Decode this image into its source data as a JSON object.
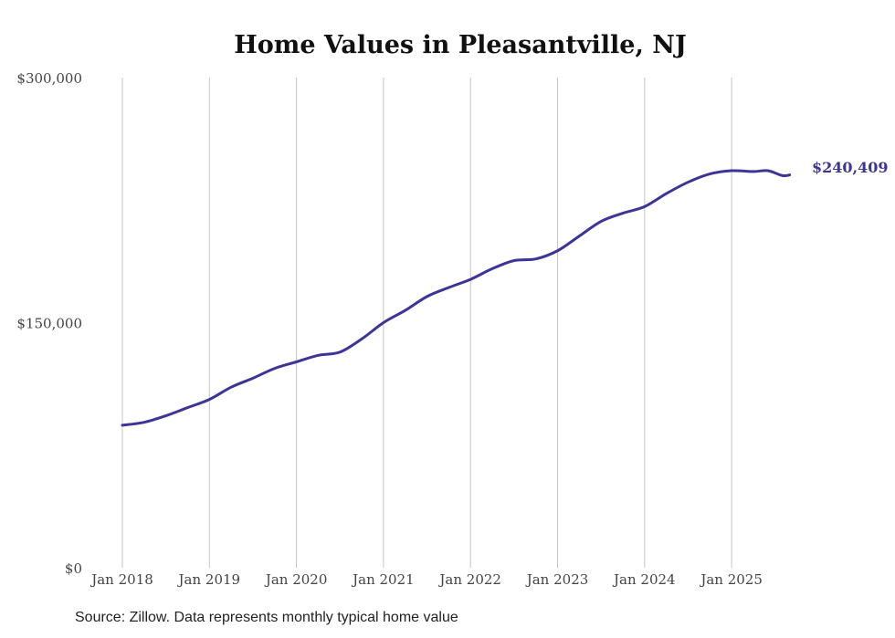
{
  "chart_data": {
    "type": "line",
    "title": "Home Values in Pleasantville, NJ",
    "xlabel": "",
    "ylabel": "",
    "ylim": [
      0,
      300000
    ],
    "y_ticks": [
      0,
      150000,
      300000
    ],
    "y_tick_labels": [
      "$0",
      "$150,000",
      "$300,000"
    ],
    "x_tick_labels": [
      "Jan 2018",
      "Jan 2019",
      "Jan 2020",
      "Jan 2021",
      "Jan 2022",
      "Jan 2023",
      "Jan 2024",
      "Jan 2025"
    ],
    "grid": "vertical at January of each year",
    "line_color": "#3b3597",
    "end_label": "$240,409",
    "series": [
      {
        "name": "Typical home value",
        "x": [
          "2018-01",
          "2018-04",
          "2018-07",
          "2018-10",
          "2019-01",
          "2019-04",
          "2019-07",
          "2019-10",
          "2020-01",
          "2020-04",
          "2020-07",
          "2020-10",
          "2021-01",
          "2021-04",
          "2021-07",
          "2021-10",
          "2022-01",
          "2022-04",
          "2022-07",
          "2022-10",
          "2023-01",
          "2023-04",
          "2023-07",
          "2023-10",
          "2024-01",
          "2024-04",
          "2024-07",
          "2024-10",
          "2025-01",
          "2025-04",
          "2025-06",
          "2025-08",
          "2025-09"
        ],
        "values": [
          87200,
          89000,
          93000,
          98000,
          103000,
          110500,
          116000,
          122000,
          126000,
          130000,
          132000,
          140000,
          150000,
          157500,
          166000,
          171500,
          176500,
          183000,
          188000,
          189000,
          194000,
          203000,
          212000,
          217000,
          221000,
          229000,
          236000,
          241000,
          243000,
          242500,
          243000,
          240000,
          240409
        ]
      }
    ]
  },
  "source": "Source: Zillow. Data represents monthly typical home value"
}
